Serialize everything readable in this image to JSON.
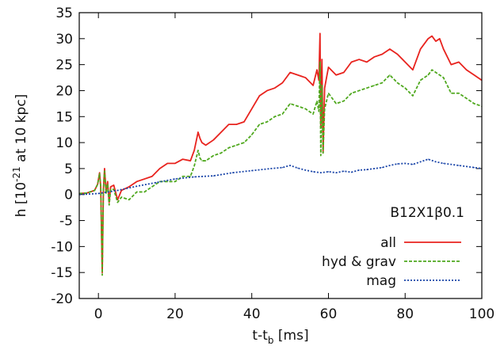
{
  "chart_data": {
    "type": "line",
    "annotation": "B12X1β0.1",
    "xlabel": {
      "main": "t-t",
      "sub": "b",
      "unit": " [ms]"
    },
    "ylabel": {
      "pre": "h [10",
      "sup": "-21",
      "post": " at 10 kpc]"
    },
    "xlim": [
      -5,
      100
    ],
    "ylim": [
      -20,
      35
    ],
    "xticks": [
      0,
      20,
      40,
      60,
      80,
      100
    ],
    "yticks": [
      -20,
      -15,
      -10,
      -5,
      0,
      5,
      10,
      15,
      20,
      25,
      30,
      35
    ],
    "grid": false,
    "legend_position": "bottom-right",
    "series": [
      {
        "name": "all",
        "color": "#e8231e",
        "dash": "solid",
        "x": [
          -5,
          -3,
          -1,
          -0.2,
          0.3,
          0.6,
          1.0,
          1.3,
          1.6,
          2.0,
          2.4,
          2.8,
          3.2,
          4,
          5,
          6,
          8,
          10,
          12,
          14,
          16,
          18,
          20,
          22,
          24,
          25,
          26,
          26.5,
          27,
          28,
          30,
          32,
          34,
          36,
          38,
          40,
          42,
          44,
          46,
          48,
          50,
          52,
          54,
          56,
          57,
          57.5,
          57.8,
          58.0,
          58.3,
          58.6,
          59,
          60,
          62,
          64,
          66,
          68,
          70,
          72,
          74,
          76,
          78,
          80,
          82,
          84,
          86,
          87,
          88,
          89,
          90,
          92,
          94,
          96,
          98,
          100
        ],
        "y": [
          0.2,
          0.3,
          0.8,
          2.0,
          4.2,
          1.5,
          -15.0,
          1.0,
          5.0,
          0.5,
          2.5,
          -1.5,
          1.5,
          1.8,
          -1.0,
          0.8,
          1.5,
          2.5,
          3.0,
          3.5,
          5.0,
          6.0,
          6.0,
          6.8,
          6.5,
          8.5,
          12.0,
          10.8,
          10.0,
          9.5,
          10.5,
          12.0,
          13.5,
          13.5,
          14.0,
          16.5,
          19.0,
          20.0,
          20.5,
          21.5,
          23.5,
          23.0,
          22.5,
          21.0,
          24.0,
          22.0,
          31.0,
          13.0,
          26.0,
          8.0,
          20.5,
          24.5,
          23.0,
          23.5,
          25.5,
          26.0,
          25.5,
          26.5,
          27.0,
          28.0,
          27.0,
          25.5,
          24.0,
          28.0,
          30.0,
          30.5,
          29.5,
          30.0,
          28.0,
          25.0,
          25.5,
          24.0,
          23.0,
          22.0
        ]
      },
      {
        "name": "hyd & grav",
        "color": "#4fa81e",
        "dash": "4,2",
        "x": [
          -5,
          -3,
          -1,
          -0.2,
          0.3,
          0.6,
          1.0,
          1.3,
          1.6,
          2.0,
          2.4,
          2.8,
          3.2,
          4,
          5,
          6,
          8,
          10,
          12,
          14,
          16,
          18,
          20,
          22,
          24,
          25,
          26,
          26.5,
          27,
          28,
          30,
          32,
          34,
          36,
          38,
          40,
          42,
          44,
          46,
          48,
          50,
          52,
          54,
          56,
          57,
          57.5,
          57.8,
          58.0,
          58.3,
          58.6,
          59,
          60,
          62,
          64,
          66,
          68,
          70,
          72,
          74,
          76,
          78,
          80,
          82,
          84,
          86,
          87,
          88,
          89,
          90,
          92,
          94,
          96,
          98,
          100
        ],
        "y": [
          0.2,
          0.3,
          0.8,
          2.0,
          4.0,
          1.5,
          -15.5,
          1.0,
          4.5,
          0.2,
          2.0,
          -2.0,
          1.0,
          1.0,
          -1.5,
          -0.5,
          -1.0,
          0.5,
          0.5,
          1.5,
          2.5,
          2.5,
          2.5,
          3.5,
          3.5,
          5.5,
          8.5,
          7.0,
          6.5,
          6.5,
          7.5,
          8.0,
          9.0,
          9.5,
          10.0,
          11.5,
          13.5,
          14.0,
          15.0,
          15.5,
          17.5,
          17.0,
          16.5,
          15.5,
          18.0,
          16.0,
          25.5,
          7.5,
          21.0,
          8.0,
          16.5,
          19.5,
          17.5,
          18.0,
          19.5,
          20.0,
          20.5,
          21.0,
          21.5,
          23.0,
          21.5,
          20.5,
          19.0,
          22.0,
          23.0,
          24.0,
          23.5,
          23.0,
          22.5,
          19.5,
          19.5,
          18.5,
          17.5,
          17.0
        ]
      },
      {
        "name": "mag",
        "color": "#1a45a8",
        "dash": "2,2",
        "x": [
          -5,
          0,
          5,
          10,
          15,
          20,
          25,
          30,
          35,
          40,
          45,
          48,
          50,
          52,
          54,
          56,
          58,
          60,
          62,
          64,
          66,
          68,
          70,
          72,
          74,
          76,
          78,
          80,
          82,
          84,
          86,
          88,
          90,
          92,
          94,
          96,
          98,
          100
        ],
        "y": [
          0.0,
          0.2,
          0.8,
          1.6,
          2.3,
          3.0,
          3.4,
          3.6,
          4.2,
          4.6,
          5.0,
          5.2,
          5.6,
          5.1,
          4.7,
          4.4,
          4.2,
          4.4,
          4.2,
          4.5,
          4.3,
          4.7,
          4.8,
          5.0,
          5.2,
          5.6,
          5.9,
          6.0,
          5.8,
          6.3,
          6.8,
          6.3,
          6.0,
          5.8,
          5.6,
          5.4,
          5.2,
          5.0
        ]
      }
    ]
  }
}
